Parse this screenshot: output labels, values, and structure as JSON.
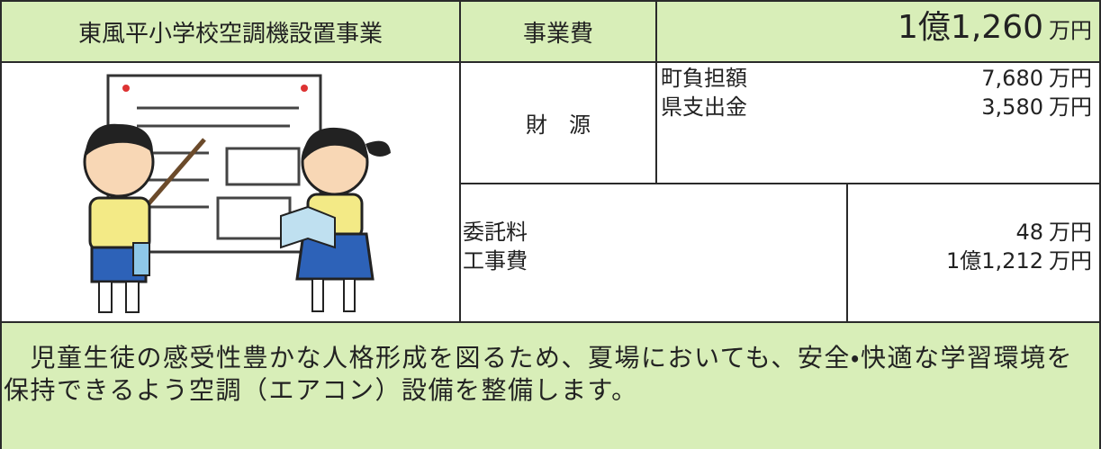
{
  "header": {
    "project": "東風平小学校空調機設置事業",
    "cost_label": "事業費",
    "cost_amount": "1億1,260",
    "cost_unit": "万円"
  },
  "funding": {
    "label": "財　源",
    "items": [
      {
        "label": "町負担額",
        "amount": "7,680",
        "unit": "万円"
      },
      {
        "label": "県支出金",
        "amount": "3,580",
        "unit": "万円"
      }
    ]
  },
  "breakdown": {
    "items": [
      {
        "label": "委託料",
        "amount": "48",
        "unit": "万円"
      },
      {
        "label": "工事費",
        "amount": "1億1,212",
        "unit": "万円"
      }
    ]
  },
  "description": "　児童生徒の感受性豊かな人格形成を図るため、夏場においても、安全・快適な学習環境を保持できるよう空調（エアコン）設備を整備します。"
}
